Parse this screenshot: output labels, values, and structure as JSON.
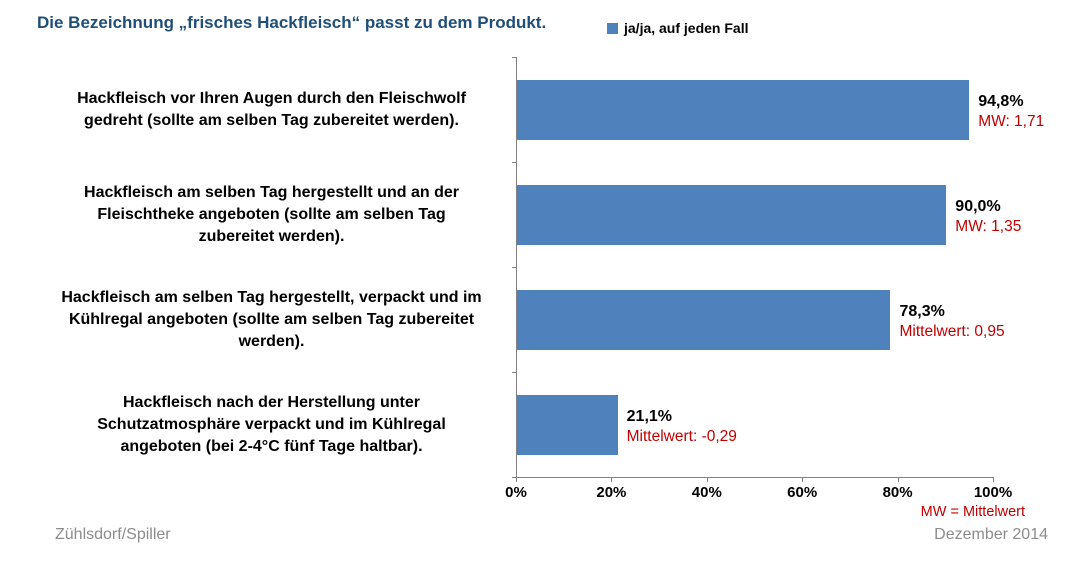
{
  "header": {
    "title": "Die Bezeichnung „frisches Hackfleisch“ passt zu dem Produkt.",
    "legend": {
      "label": "ja/ja, auf jeden Fall",
      "swatch_color": "#4F81BD"
    }
  },
  "chart_data": {
    "type": "bar",
    "orientation": "horizontal",
    "title": "Die Bezeichnung „frisches Hackfleisch“ passt zu dem Produkt.",
    "series_name": "ja/ja, auf jeden Fall",
    "categories": [
      "Hackfleisch vor Ihren Augen durch den Fleischwolf\ngedreht (sollte am selben Tag zubereitet werden).",
      "Hackfleisch am selben Tag hergestellt und an der\nFleischtheke angeboten (sollte am selben Tag\nzubereitet werden).",
      "Hackfleisch am selben Tag hergestellt, verpackt und im\nKühlregal angeboten (sollte am selben Tag zubereitet\nwerden).",
      "Hackfleisch nach der Herstellung unter\nSchutzatmosphäre verpackt und im Kühlregal\nangeboten (bei 2-4°C fünf Tage haltbar)."
    ],
    "values": [
      94.8,
      90.0,
      78.3,
      21.1
    ],
    "value_labels": [
      "94,8%",
      "90,0%",
      "78,3%",
      "21,1%"
    ],
    "mean_labels": [
      "MW: 1,71",
      "MW: 1,35",
      "Mittelwert: 0,95",
      "Mittelwert: -0,29"
    ],
    "xlim": [
      0,
      100
    ],
    "x_ticks": [
      "0%",
      "20%",
      "40%",
      "60%",
      "80%",
      "100%"
    ],
    "grid": false,
    "legend_position": "top-right",
    "bar_color": "#4F81BD",
    "axis_color": "#808080",
    "mean_color": "#C00000",
    "title_color": "#1F4E79"
  },
  "footnote": "MW = Mittelwert",
  "footer": {
    "left": "Zühlsdorf/Spiller",
    "right": "Dezember 2014"
  }
}
